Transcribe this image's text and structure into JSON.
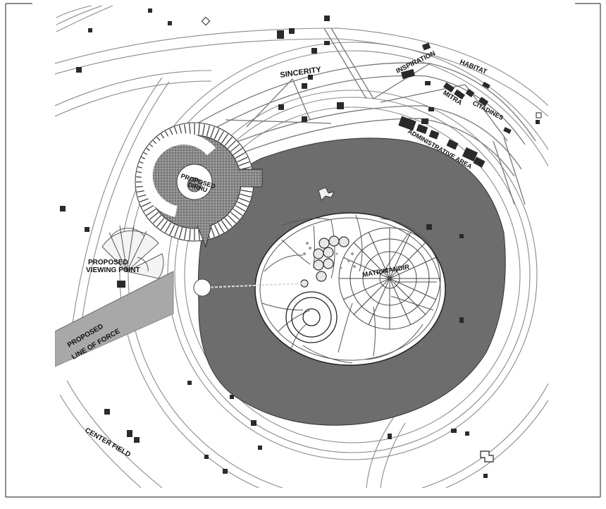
{
  "labels": {
    "sincerity": "SINCERITY",
    "inspiration": "INSPIRATION",
    "habitat": "HABITAT",
    "mitra": "MITRA",
    "citadines": "CITADINES",
    "administrative": "ADMINISTRATIVE AREA",
    "proposed_dirhu_1": "PROPOSED",
    "proposed_dirhu_2": "DIRHU",
    "viewing_1": "PROPOSED",
    "viewing_2": "VIEWING POINT",
    "line_force_1": "PROPOSED",
    "line_force_2": "LINE OF FORCE",
    "matrimandir": "MATRIMANDIR",
    "center_field": "CENTER FIELD"
  },
  "colors": {
    "lake": "#6d6d6d",
    "ink": "#111111",
    "line": "#777777",
    "road_fill": "#f4f4f4",
    "line_of_force": "#a8a8a8",
    "paper": "#ffffff"
  }
}
